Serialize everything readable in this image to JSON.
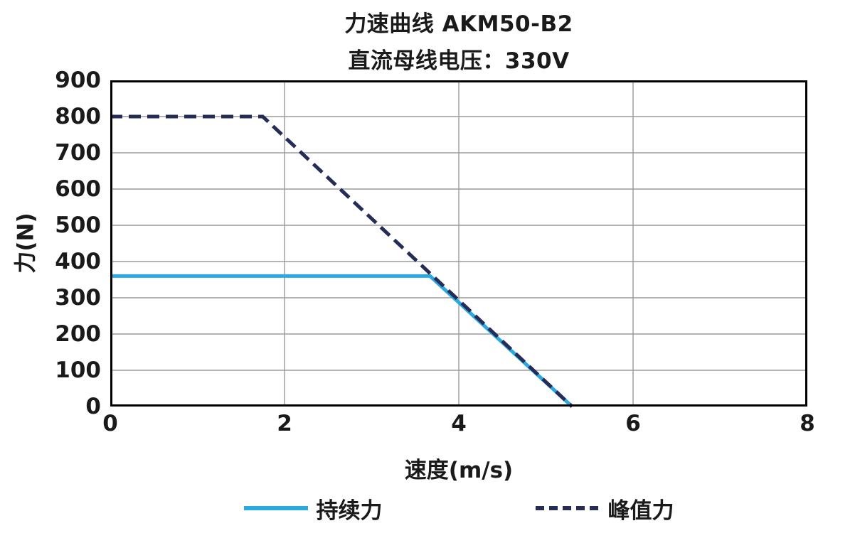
{
  "chart_data": {
    "type": "line",
    "title": "力速曲线 AKM50-B2",
    "subtitle": "直流母线电压：330V",
    "xlabel": "速度(m/s)",
    "ylabel": "力(N)",
    "xlim": [
      0,
      8
    ],
    "ylim": [
      0,
      900
    ],
    "xticks": [
      0,
      2,
      4,
      6,
      8
    ],
    "yticks": [
      0,
      100,
      200,
      300,
      400,
      500,
      600,
      700,
      800,
      900
    ],
    "grid": true,
    "legend_position": "bottom",
    "series": [
      {
        "name": "持续力",
        "style": "solid",
        "color": "#2aa9e0",
        "points": [
          [
            0,
            360
          ],
          [
            3.67,
            360
          ],
          [
            5.3,
            0
          ]
        ]
      },
      {
        "name": "峰值力",
        "style": "dashed",
        "color": "#252c58",
        "points": [
          [
            0,
            800
          ],
          [
            1.75,
            800
          ],
          [
            5.3,
            0
          ]
        ]
      }
    ]
  },
  "colors": {
    "grid": "#9b9b9b",
    "border": "#000000",
    "text": "#1a1a1a"
  }
}
